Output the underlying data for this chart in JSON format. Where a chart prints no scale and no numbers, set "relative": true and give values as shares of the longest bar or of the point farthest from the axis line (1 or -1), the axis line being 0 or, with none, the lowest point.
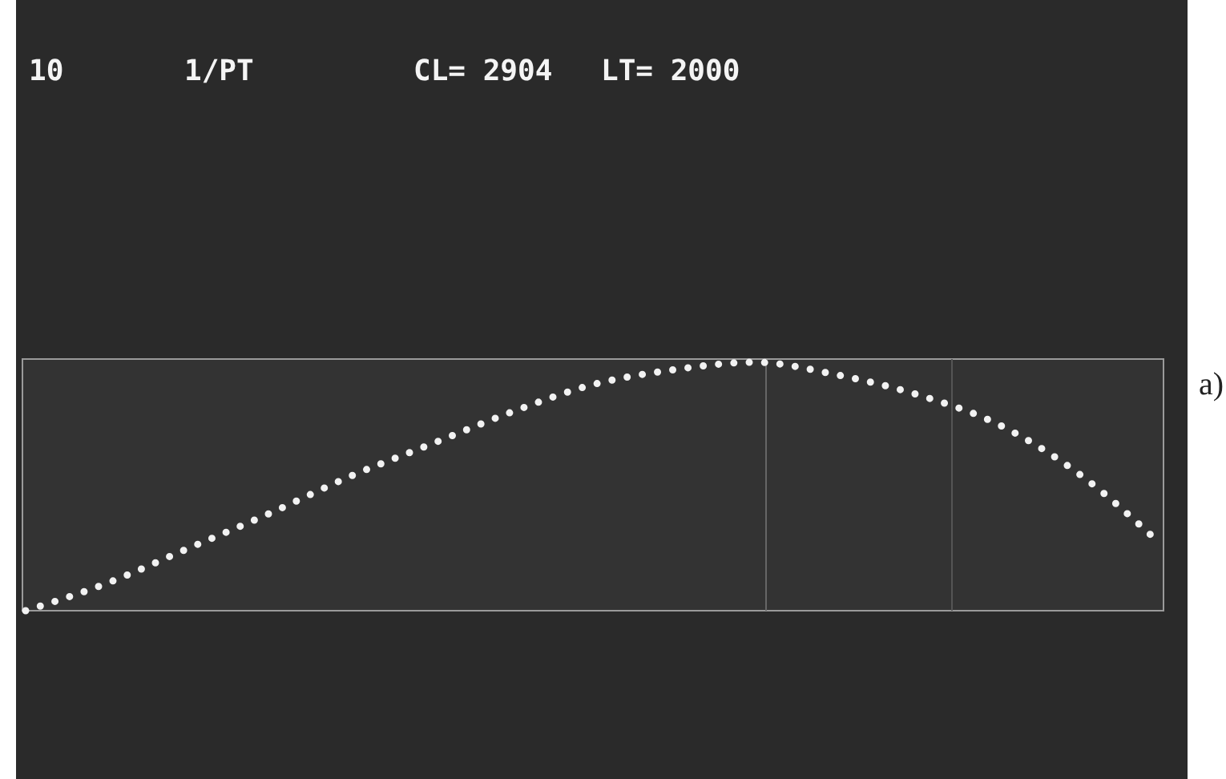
{
  "chart_data": {
    "type": "line",
    "relative": true,
    "line_style": "dotted",
    "categories": [
      null,
      null,
      null,
      null,
      null,
      null,
      null,
      null,
      null,
      null,
      null,
      null,
      null,
      null,
      null
    ],
    "series": [
      {
        "color": "#f2f2f2",
        "values": [
          0,
          0.11,
          0.25,
          0.39,
          0.54,
          0.67,
          0.8,
          0.91,
          0.97,
          1,
          0.95,
          0.87,
          0.75,
          0.55,
          0.27
        ]
      }
    ],
    "annotations": [
      "10",
      "1/PT",
      "CL= 2904",
      "LT= 2000",
      "a)"
    ]
  }
}
